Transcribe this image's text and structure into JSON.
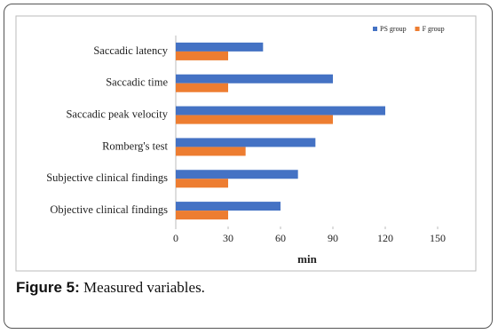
{
  "chart_data": {
    "type": "bar",
    "orientation": "horizontal",
    "categories": [
      "Saccadic latency",
      "Saccadic time",
      "Saccadic peak velocity",
      "Romberg's test",
      "Subjective clinical findings",
      "Objective clinical findings"
    ],
    "series": [
      {
        "name": "PS group",
        "color": "#4472c4",
        "values": [
          50,
          90,
          120,
          80,
          70,
          60
        ]
      },
      {
        "name": "F group",
        "color": "#ed7d31",
        "values": [
          30,
          30,
          90,
          40,
          30,
          30
        ]
      }
    ],
    "xlabel": "min",
    "xlim": [
      0,
      150
    ],
    "xticks": [
      0,
      30,
      60,
      90,
      120,
      150
    ],
    "legend": "top-right"
  },
  "caption": {
    "label": "Figure 5:",
    "text": "Measured variables."
  }
}
